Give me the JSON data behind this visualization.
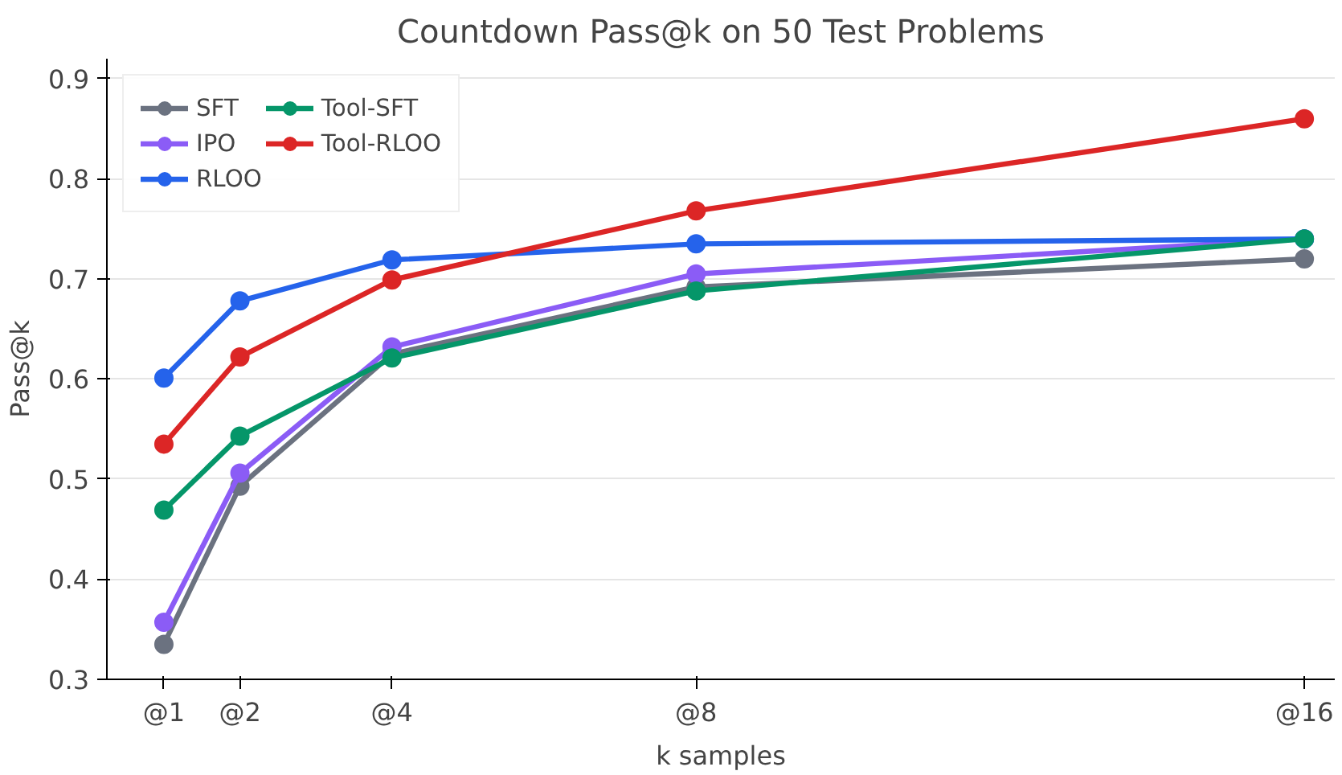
{
  "chart_data": {
    "type": "line",
    "title": "Countdown Pass@k on 50 Test Problems",
    "xlabel": "k samples",
    "ylabel": "Pass@k",
    "x": [
      1,
      2,
      4,
      8,
      16
    ],
    "xlim": [
      0.25,
      16.4
    ],
    "xticks": [
      {
        "value": 1,
        "label": "@1"
      },
      {
        "value": 2,
        "label": "@2"
      },
      {
        "value": 4,
        "label": "@4"
      },
      {
        "value": 8,
        "label": "@8"
      },
      {
        "value": 16,
        "label": "@16"
      }
    ],
    "ylim": [
      0.3,
      0.92
    ],
    "yticks": [
      0.3,
      0.4,
      0.5,
      0.6,
      0.7,
      0.8,
      0.9
    ],
    "grid": "y",
    "legend": "top left",
    "marker": "circle",
    "line_style": "solid",
    "series": [
      {
        "name": "SFT",
        "color": "#6b7280",
        "values": [
          0.335,
          0.493,
          0.625,
          0.692,
          0.72
        ]
      },
      {
        "name": "IPO",
        "color": "#8b5cf6",
        "values": [
          0.357,
          0.506,
          0.632,
          0.705,
          0.74
        ]
      },
      {
        "name": "RLOO",
        "color": "#2563eb",
        "values": [
          0.601,
          0.678,
          0.719,
          0.735,
          0.74
        ]
      },
      {
        "name": "Tool-SFT",
        "color": "#059669",
        "values": [
          0.469,
          0.543,
          0.621,
          0.688,
          0.74
        ]
      },
      {
        "name": "Tool-RLOO",
        "color": "#dc2626",
        "values": [
          0.535,
          0.622,
          0.699,
          0.768,
          0.86
        ]
      }
    ]
  }
}
